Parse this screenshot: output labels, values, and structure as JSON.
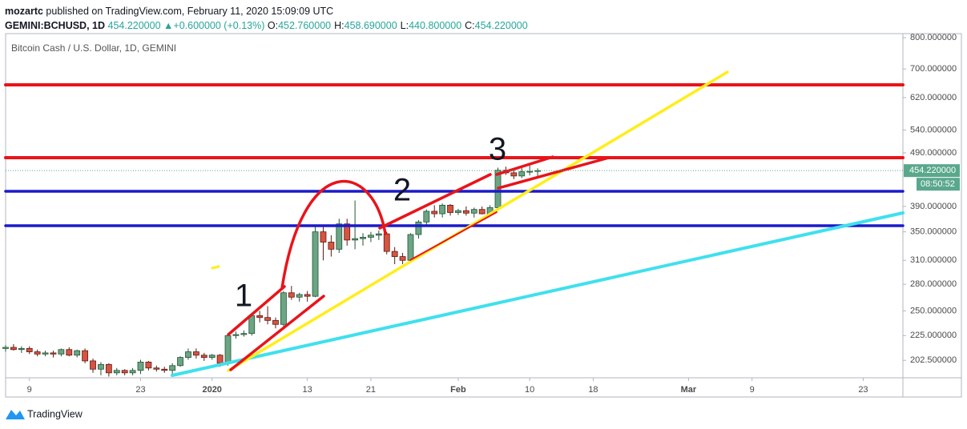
{
  "header": {
    "publisher": "mozartc",
    "published": "published on TradingView.com, February 11, 2020 15:09:09 UTC",
    "symbol": "GEMINI:BCHUSD, 1D",
    "price": "454.220000",
    "change": "▲+0.600000 (+0.13%)",
    "ohlc": [
      {
        "key": "O:",
        "value": "452.760000"
      },
      {
        "key": "H:",
        "value": "458.690000"
      },
      {
        "key": "L:",
        "value": "440.800000"
      },
      {
        "key": "C:",
        "value": "454.220000"
      }
    ]
  },
  "footer": {
    "brand": "TradingView"
  },
  "chart_data": {
    "type": "candlestick",
    "title": "Bitcoin Cash / U.S. Dollar, 1D, GEMINI",
    "x": [
      "2019-12-06",
      "2019-12-07",
      "2019-12-08",
      "2019-12-09",
      "2019-12-10",
      "2019-12-11",
      "2019-12-12",
      "2019-12-13",
      "2019-12-14",
      "2019-12-15",
      "2019-12-16",
      "2019-12-17",
      "2019-12-18",
      "2019-12-19",
      "2019-12-20",
      "2019-12-21",
      "2019-12-22",
      "2019-12-23",
      "2019-12-24",
      "2019-12-25",
      "2019-12-26",
      "2019-12-27",
      "2019-12-28",
      "2019-12-29",
      "2019-12-30",
      "2019-12-31",
      "2020-01-01",
      "2020-01-02",
      "2020-01-03",
      "2020-01-04",
      "2020-01-05",
      "2020-01-06",
      "2020-01-07",
      "2020-01-08",
      "2020-01-09",
      "2020-01-10",
      "2020-01-11",
      "2020-01-12",
      "2020-01-13",
      "2020-01-14",
      "2020-01-15",
      "2020-01-16",
      "2020-01-17",
      "2020-01-18",
      "2020-01-19",
      "2020-01-20",
      "2020-01-21",
      "2020-01-22",
      "2020-01-23",
      "2020-01-24",
      "2020-01-25",
      "2020-01-26",
      "2020-01-27",
      "2020-01-28",
      "2020-01-29",
      "2020-01-30",
      "2020-01-31",
      "2020-02-01",
      "2020-02-02",
      "2020-02-03",
      "2020-02-04",
      "2020-02-05",
      "2020-02-06",
      "2020-02-07",
      "2020-02-08",
      "2020-02-09",
      "2020-02-10",
      "2020-02-11"
    ],
    "open": [
      213,
      214,
      212,
      213,
      210,
      208,
      209,
      208,
      212,
      207,
      211,
      202,
      195,
      199,
      192,
      194,
      192,
      194,
      201,
      196,
      195,
      194,
      198,
      205,
      210,
      207,
      205,
      207,
      200,
      225,
      226,
      227,
      245,
      243,
      240,
      236,
      270,
      265,
      268,
      266,
      350,
      335,
      325,
      362,
      338,
      340,
      342,
      345,
      347,
      322,
      315,
      310,
      346,
      365,
      382,
      378,
      392,
      380,
      383,
      379,
      385,
      378,
      388,
      455,
      450,
      444,
      452,
      452.76
    ],
    "high": [
      216,
      217,
      215,
      215,
      212,
      211,
      211,
      213,
      214,
      212,
      213,
      204,
      201,
      200,
      196,
      195,
      196,
      203,
      202,
      198,
      197,
      200,
      206,
      213,
      213,
      209,
      208,
      208,
      227,
      229,
      230,
      247,
      250,
      255,
      243,
      272,
      278,
      270,
      272,
      360,
      360,
      345,
      370,
      370,
      400,
      348,
      350,
      352,
      350,
      328,
      320,
      348,
      368,
      385,
      392,
      395,
      394,
      386,
      390,
      388,
      390,
      392,
      460,
      462,
      455,
      460,
      466,
      458.69
    ],
    "low": [
      210,
      211,
      209,
      208,
      206,
      206,
      205,
      206,
      206,
      205,
      200,
      192,
      190,
      189,
      190,
      190,
      190,
      191,
      194,
      193,
      192,
      191,
      197,
      203,
      204,
      202,
      203,
      197,
      198,
      222,
      224,
      225,
      238,
      236,
      232,
      234,
      262,
      260,
      260,
      265,
      310,
      315,
      320,
      330,
      325,
      330,
      335,
      338,
      318,
      305,
      305,
      308,
      340,
      360,
      372,
      372,
      375,
      376,
      375,
      372,
      377,
      376,
      385,
      446,
      438,
      440,
      445,
      440.8
    ],
    "close": [
      214,
      212,
      213,
      210,
      208,
      209,
      208,
      212,
      207,
      211,
      202,
      195,
      199,
      192,
      194,
      192,
      194,
      201,
      196,
      195,
      194,
      198,
      205,
      210,
      207,
      205,
      207,
      200,
      225,
      226,
      227,
      245,
      243,
      240,
      236,
      270,
      265,
      268,
      266,
      350,
      335,
      325,
      362,
      338,
      340,
      342,
      345,
      347,
      322,
      315,
      310,
      346,
      365,
      382,
      378,
      392,
      380,
      383,
      379,
      385,
      378,
      388,
      455,
      450,
      444,
      452,
      452.76,
      454.22
    ],
    "up_color": "#6ba583",
    "down_color": "#d75442",
    "log_scale": true,
    "ylim": [
      188,
      814
    ],
    "yticks": [
      {
        "value": 202.5,
        "label": "202.500000"
      },
      {
        "value": 225,
        "label": "225.000000"
      },
      {
        "value": 250,
        "label": "250.000000"
      },
      {
        "value": 280,
        "label": "280.000000"
      },
      {
        "value": 310,
        "label": "310.000000"
      },
      {
        "value": 350,
        "label": "350.000000"
      },
      {
        "value": 390,
        "label": "390.000000"
      },
      {
        "value": 490,
        "label": "490.000000"
      },
      {
        "value": 540,
        "label": "540.000000"
      },
      {
        "value": 620,
        "label": "620.000000"
      },
      {
        "value": 700,
        "label": "700.000000"
      },
      {
        "value": 800,
        "label": "800.000000"
      }
    ],
    "xlim": [
      "2019-12-06",
      "2020-03-28"
    ],
    "xticks": [
      {
        "value": "2019-12-09",
        "label": "9"
      },
      {
        "value": "2019-12-23",
        "label": "23"
      },
      {
        "value": "2020-01-01",
        "label": "2020"
      },
      {
        "value": "2020-01-13",
        "label": "13"
      },
      {
        "value": "2020-01-21",
        "label": "21"
      },
      {
        "value": "2020-02-01",
        "label": "Feb"
      },
      {
        "value": "2020-02-10",
        "label": "10"
      },
      {
        "value": "2020-02-18",
        "label": "18"
      },
      {
        "value": "2020-03-01",
        "label": "Mar"
      },
      {
        "value": "2020-03-09",
        "label": "9"
      },
      {
        "value": "2020-03-23",
        "label": "23"
      }
    ],
    "last_price": {
      "value": 454.22,
      "label": "454.220000"
    },
    "countdown": "08:50:52",
    "annotations": [
      "1",
      "2",
      "3"
    ]
  }
}
